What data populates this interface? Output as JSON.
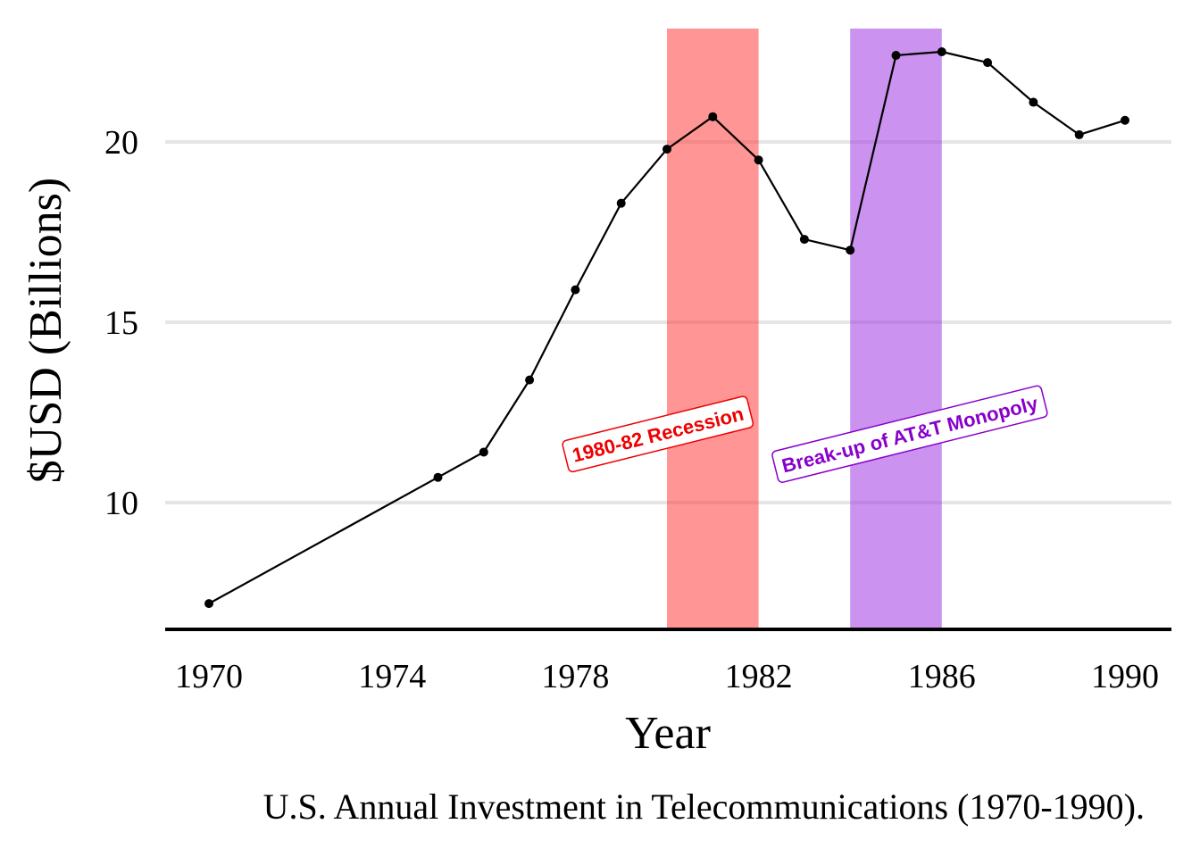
{
  "chart_data": {
    "type": "line",
    "title": "",
    "caption": "U.S. Annual Investment in Telecommunications (1970-1990).",
    "xlabel": "Year",
    "ylabel": "$USD (Billions)",
    "xlim": [
      1969,
      1991
    ],
    "ylim": [
      6.5,
      23.3
    ],
    "xticks": [
      1970,
      1974,
      1978,
      1982,
      1986,
      1990
    ],
    "yticks": [
      10,
      15,
      20
    ],
    "grid": "horizontal",
    "series": [
      {
        "values": [
          {
            "x": 1970,
            "y": 7.2
          },
          {
            "x": 1975,
            "y": 10.7
          },
          {
            "x": 1976,
            "y": 11.4
          },
          {
            "x": 1977,
            "y": 13.4
          },
          {
            "x": 1978,
            "y": 15.9
          },
          {
            "x": 1979,
            "y": 18.3
          },
          {
            "x": 1980,
            "y": 19.8
          },
          {
            "x": 1981,
            "y": 20.7
          },
          {
            "x": 1982,
            "y": 19.5
          },
          {
            "x": 1983,
            "y": 17.3
          },
          {
            "x": 1984,
            "y": 17.0
          },
          {
            "x": 1985,
            "y": 22.4
          },
          {
            "x": 1986,
            "y": 22.5
          },
          {
            "x": 1987,
            "y": 22.2
          },
          {
            "x": 1988,
            "y": 21.1
          },
          {
            "x": 1989,
            "y": 20.2
          },
          {
            "x": 1990,
            "y": 20.6
          }
        ]
      }
    ],
    "shaded_regions": [
      {
        "label": "1980-82 Recession",
        "x_start": 1980,
        "x_end": 1982,
        "color": "#FF3333",
        "label_x": 1979.8,
        "label_y": 11.9
      },
      {
        "label": "Break-up of AT&T Monopoly",
        "x_start": 1984,
        "x_end": 1986,
        "color": "#9B30E0",
        "label_x": 1985.3,
        "label_y": 11.9
      }
    ],
    "colors": {
      "line": "#000000",
      "recession_text": "#EE0000",
      "att_text": "#8800CC"
    }
  }
}
